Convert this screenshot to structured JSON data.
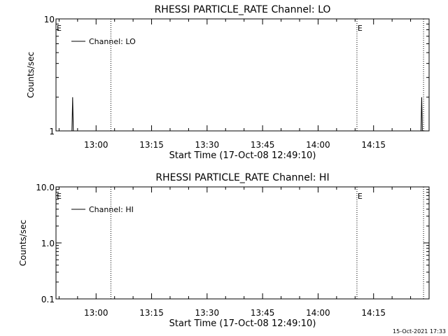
{
  "chart_data": [
    {
      "type": "line",
      "title": "RHESSI PARTICLE_RATE Channel: LO",
      "xlabel": "Start Time (17-Oct-08 12:49:10)",
      "ylabel": "Counts/sec",
      "yscale": "log",
      "ylim": [
        1,
        10
      ],
      "xlim": [
        "12:49:10",
        "14:30:00"
      ],
      "xticks": [
        "13:00",
        "13:15",
        "13:30",
        "13:45",
        "14:00",
        "14:15"
      ],
      "yticks": [
        "1",
        "10"
      ],
      "legend": {
        "label": "Channel: LO",
        "position": "top-left"
      },
      "markers": [
        {
          "label": "E",
          "time": "12:49:10"
        },
        {
          "label": "",
          "time": "13:04:00"
        },
        {
          "label": "E",
          "time": "14:10:30"
        },
        {
          "label": "",
          "time": "14:28:30"
        }
      ],
      "spikes": [
        {
          "time": "12:53:40",
          "value": 2.0
        },
        {
          "time": "14:28:00",
          "value": 2.0
        }
      ]
    },
    {
      "type": "line",
      "title": "RHESSI PARTICLE_RATE Channel: HI",
      "xlabel": "Start Time (17-Oct-08 12:49:10)",
      "ylabel": "Counts/sec",
      "yscale": "log",
      "ylim": [
        0.1,
        10
      ],
      "xlim": [
        "12:49:10",
        "14:30:00"
      ],
      "xticks": [
        "13:00",
        "13:15",
        "13:30",
        "13:45",
        "14:00",
        "14:15"
      ],
      "yticks": [
        "0.1",
        "1.0",
        "10.0"
      ],
      "legend": {
        "label": "Channel: HI",
        "position": "top-left"
      },
      "markers": [
        {
          "label": "E",
          "time": "12:49:10"
        },
        {
          "label": "",
          "time": "13:04:00"
        },
        {
          "label": "E",
          "time": "14:10:30"
        },
        {
          "label": "",
          "time": "14:28:30"
        }
      ],
      "spikes": []
    }
  ],
  "timestamp": "15-Oct-2021 17:33"
}
